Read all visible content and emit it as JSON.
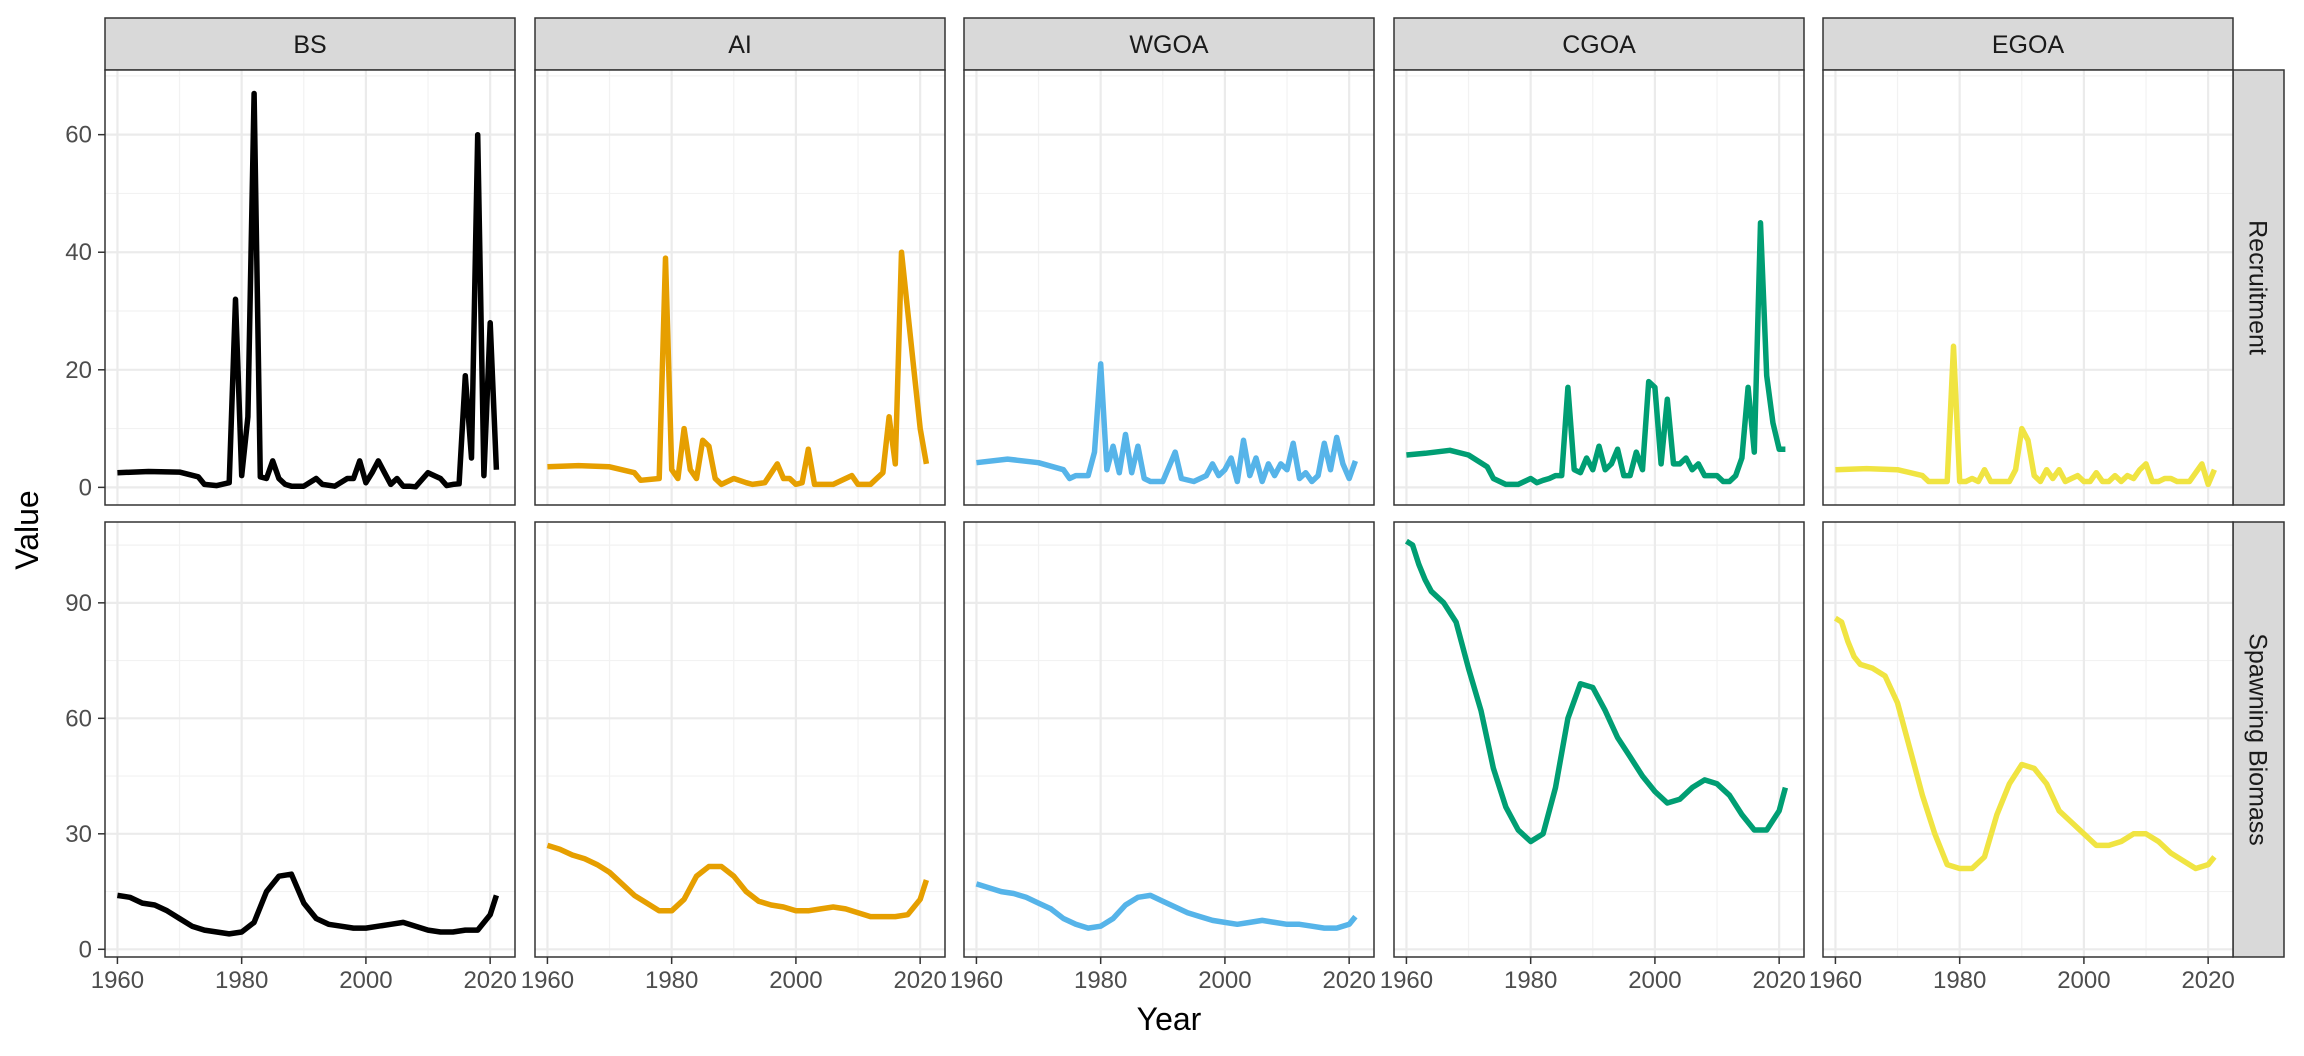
{
  "chart_data": {
    "type": "line",
    "xlabel": "Year",
    "ylabel": "Value",
    "facet_columns": [
      "BS",
      "AI",
      "WGOA",
      "CGOA",
      "EGOA"
    ],
    "facet_rows": [
      "Recruitment",
      "Spawning Biomass"
    ],
    "colors": {
      "BS": "#000000",
      "AI": "#E69F00",
      "WGOA": "#56B4E9",
      "CGOA": "#009E73",
      "EGOA": "#F0E442"
    },
    "xlim": [
      1958,
      2024
    ],
    "x_ticks": [
      1960,
      1980,
      2000,
      2020
    ],
    "x_tick_labels": [
      "1960",
      "1980",
      "2000",
      "2020"
    ],
    "rows": [
      {
        "name": "Recruitment",
        "ylim": [
          -3,
          71
        ],
        "y_ticks": [
          0,
          20,
          40,
          60
        ],
        "y_tick_labels": [
          "0",
          "20",
          "40",
          "60"
        ]
      },
      {
        "name": "Spawning Biomass",
        "ylim": [
          -2,
          111
        ],
        "y_ticks": [
          0,
          30,
          60,
          90
        ],
        "y_tick_labels": [
          "0",
          "30",
          "60",
          "90"
        ]
      }
    ],
    "grid": true,
    "series": [
      {
        "area": "BS",
        "var": "Recruitment",
        "x": [
          1960,
          1965,
          1970,
          1973,
          1974,
          1976,
          1978,
          1979,
          1980,
          1981,
          1982,
          1983,
          1984,
          1985,
          1986,
          1987,
          1988,
          1990,
          1992,
          1993,
          1995,
          1997,
          1998,
          1999,
          2000,
          2001,
          2002,
          2003,
          2004,
          2005,
          2006,
          2007,
          2008,
          2010,
          2011,
          2012,
          2013,
          2014,
          2015,
          2016,
          2017,
          2018,
          2019,
          2020,
          2021
        ],
        "y": [
          2.5,
          2.7,
          2.6,
          1.8,
          0.5,
          0.3,
          0.8,
          32,
          2,
          12,
          67,
          1.8,
          1.5,
          4.5,
          1.5,
          0.5,
          0.2,
          0.2,
          1.5,
          0.5,
          0.2,
          1.5,
          1.5,
          4.5,
          0.8,
          2.5,
          4.5,
          2.5,
          0.5,
          1.5,
          0.2,
          0.2,
          0.1,
          2.5,
          2,
          1.5,
          0.3,
          0.5,
          0.6,
          19,
          5,
          60,
          2,
          28,
          3
        ]
      },
      {
        "area": "AI",
        "var": "Recruitment",
        "x": [
          1960,
          1965,
          1970,
          1974,
          1975,
          1978,
          1979,
          1980,
          1981,
          1982,
          1983,
          1984,
          1985,
          1986,
          1987,
          1988,
          1990,
          1992,
          1993,
          1995,
          1997,
          1998,
          1999,
          2000,
          2001,
          2002,
          2003,
          2004,
          2006,
          2008,
          2009,
          2010,
          2011,
          2012,
          2013,
          2014,
          2015,
          2016,
          2017,
          2018,
          2019,
          2020,
          2021
        ],
        "y": [
          3.5,
          3.7,
          3.5,
          2.5,
          1.2,
          1.5,
          39,
          3,
          1.5,
          10,
          3,
          1.5,
          8,
          7,
          1.5,
          0.5,
          1.5,
          0.8,
          0.5,
          0.8,
          4,
          1.5,
          1.5,
          0.5,
          0.8,
          6.5,
          0.5,
          0.5,
          0.5,
          1.5,
          2,
          0.5,
          0.5,
          0.5,
          1.5,
          2.5,
          12,
          4,
          40,
          30,
          20,
          10,
          4
        ]
      },
      {
        "area": "WGOA",
        "var": "Recruitment",
        "x": [
          1960,
          1965,
          1970,
          1974,
          1975,
          1976,
          1978,
          1979,
          1980,
          1981,
          1982,
          1983,
          1984,
          1985,
          1986,
          1987,
          1988,
          1990,
          1992,
          1993,
          1995,
          1997,
          1998,
          1999,
          2000,
          2001,
          2002,
          2003,
          2004,
          2005,
          2006,
          2007,
          2008,
          2009,
          2010,
          2011,
          2012,
          2013,
          2014,
          2015,
          2016,
          2017,
          2018,
          2019,
          2020,
          2021
        ],
        "y": [
          4.2,
          4.8,
          4.2,
          3,
          1.5,
          2,
          2,
          6,
          21,
          3,
          7,
          2.5,
          9,
          2.5,
          7,
          1.5,
          1,
          1,
          6,
          1.5,
          1,
          2,
          4,
          2,
          3,
          5,
          1,
          8,
          2,
          5,
          1,
          4,
          2,
          4,
          3,
          7.5,
          1.5,
          2.5,
          1,
          2,
          7.5,
          3,
          8.5,
          4,
          1.5,
          4.5
        ]
      },
      {
        "area": "CGOA",
        "var": "Recruitment",
        "x": [
          1960,
          1963,
          1967,
          1970,
          1973,
          1974,
          1976,
          1978,
          1980,
          1981,
          1982,
          1983,
          1984,
          1985,
          1986,
          1987,
          1988,
          1989,
          1990,
          1991,
          1992,
          1993,
          1994,
          1995,
          1996,
          1997,
          1998,
          1999,
          2000,
          2001,
          2002,
          2003,
          2004,
          2005,
          2006,
          2007,
          2008,
          2009,
          2010,
          2011,
          2012,
          2013,
          2014,
          2015,
          2016,
          2017,
          2018,
          2019,
          2020,
          2021
        ],
        "y": [
          5.5,
          5.8,
          6.3,
          5.5,
          3.5,
          1.5,
          0.5,
          0.5,
          1.5,
          0.8,
          1.2,
          1.5,
          2,
          2,
          17,
          3,
          2.5,
          5,
          3,
          7,
          3,
          4,
          6.5,
          2,
          2,
          6,
          3,
          18,
          17,
          4,
          15,
          4,
          4,
          5,
          3,
          4,
          2,
          2,
          2,
          1,
          1,
          2,
          5,
          17,
          6,
          45,
          19,
          11,
          6.5,
          6.5
        ]
      },
      {
        "area": "EGOA",
        "var": "Recruitment",
        "x": [
          1960,
          1965,
          1970,
          1974,
          1975,
          1976,
          1978,
          1979,
          1980,
          1981,
          1982,
          1983,
          1984,
          1985,
          1986,
          1988,
          1989,
          1990,
          1991,
          1992,
          1993,
          1994,
          1995,
          1996,
          1997,
          1998,
          1999,
          2000,
          2001,
          2002,
          2003,
          2004,
          2005,
          2006,
          2007,
          2008,
          2009,
          2010,
          2011,
          2012,
          2013,
          2014,
          2015,
          2016,
          2017,
          2018,
          2019,
          2020,
          2021
        ],
        "y": [
          3,
          3.2,
          3,
          2,
          1,
          1,
          1,
          24,
          1,
          1,
          1.5,
          1,
          3,
          1,
          1,
          1,
          3,
          10,
          8,
          2,
          1,
          3,
          1.5,
          3,
          1,
          1.5,
          2,
          1,
          1,
          2.5,
          1,
          1,
          2,
          1,
          2,
          1.5,
          3,
          4,
          1,
          1,
          1.5,
          1.5,
          1,
          1,
          1,
          2.5,
          4,
          0.5,
          3
        ]
      },
      {
        "area": "BS",
        "var": "Spawning Biomass",
        "x": [
          1960,
          1962,
          1964,
          1966,
          1968,
          1970,
          1972,
          1974,
          1976,
          1978,
          1980,
          1982,
          1984,
          1986,
          1988,
          1990,
          1992,
          1994,
          1996,
          1998,
          2000,
          2002,
          2004,
          2006,
          2008,
          2010,
          2012,
          2014,
          2016,
          2018,
          2020,
          2021
        ],
        "y": [
          14,
          13.5,
          12,
          11.5,
          10,
          8,
          6,
          5,
          4.5,
          4,
          4.5,
          7,
          15,
          19,
          19.5,
          12,
          8,
          6.5,
          6,
          5.5,
          5.5,
          6,
          6.5,
          7,
          6,
          5,
          4.5,
          4.5,
          5,
          5,
          9,
          14
        ]
      },
      {
        "area": "AI",
        "var": "Spawning Biomass",
        "x": [
          1960,
          1962,
          1964,
          1966,
          1968,
          1970,
          1972,
          1974,
          1976,
          1978,
          1980,
          1982,
          1984,
          1986,
          1988,
          1990,
          1992,
          1994,
          1996,
          1998,
          2000,
          2002,
          2004,
          2006,
          2008,
          2010,
          2012,
          2014,
          2016,
          2018,
          2020,
          2021
        ],
        "y": [
          27,
          26,
          24.5,
          23.5,
          22,
          20,
          17,
          14,
          12,
          10,
          10,
          13,
          19,
          21.5,
          21.5,
          19,
          15,
          12.5,
          11.5,
          11,
          10,
          10,
          10.5,
          11,
          10.5,
          9.5,
          8.5,
          8.5,
          8.5,
          9,
          13,
          18
        ]
      },
      {
        "area": "WGOA",
        "var": "Spawning Biomass",
        "x": [
          1960,
          1962,
          1964,
          1966,
          1968,
          1970,
          1972,
          1974,
          1976,
          1978,
          1980,
          1982,
          1984,
          1986,
          1988,
          1990,
          1992,
          1994,
          1996,
          1998,
          2000,
          2002,
          2004,
          2006,
          2008,
          2010,
          2012,
          2014,
          2016,
          2018,
          2020,
          2021
        ],
        "y": [
          17,
          16,
          15,
          14.5,
          13.5,
          12,
          10.5,
          8,
          6.5,
          5.5,
          6,
          8,
          11.5,
          13.5,
          14,
          12.5,
          11,
          9.5,
          8.5,
          7.5,
          7,
          6.5,
          7,
          7.5,
          7,
          6.5,
          6.5,
          6,
          5.5,
          5.5,
          6.5,
          8.5
        ]
      },
      {
        "area": "CGOA",
        "var": "Spawning Biomass",
        "x": [
          1960,
          1961,
          1962,
          1963,
          1964,
          1966,
          1968,
          1970,
          1972,
          1974,
          1976,
          1978,
          1980,
          1982,
          1984,
          1986,
          1988,
          1990,
          1992,
          1994,
          1996,
          1998,
          2000,
          2002,
          2004,
          2006,
          2008,
          2010,
          2012,
          2014,
          2016,
          2018,
          2020,
          2021
        ],
        "y": [
          106,
          105,
          100,
          96,
          93,
          90,
          85,
          73,
          62,
          47,
          37,
          31,
          28,
          30,
          42,
          60,
          69,
          68,
          62,
          55,
          50,
          45,
          41,
          38,
          39,
          42,
          44,
          43,
          40,
          35,
          31,
          31,
          36,
          42
        ]
      },
      {
        "area": "EGOA",
        "var": "Spawning Biomass",
        "x": [
          1960,
          1961,
          1962,
          1963,
          1964,
          1966,
          1968,
          1970,
          1972,
          1974,
          1976,
          1978,
          1980,
          1982,
          1984,
          1986,
          1988,
          1990,
          1992,
          1994,
          1996,
          1998,
          2000,
          2002,
          2004,
          2006,
          2008,
          2010,
          2012,
          2014,
          2016,
          2018,
          2020,
          2021
        ],
        "y": [
          86,
          85,
          80,
          76,
          74,
          73,
          71,
          64,
          52,
          40,
          30,
          22,
          21,
          21,
          24,
          35,
          43,
          48,
          47,
          43,
          36,
          33,
          30,
          27,
          27,
          28,
          30,
          30,
          28,
          25,
          23,
          21,
          22,
          24
        ]
      }
    ]
  }
}
